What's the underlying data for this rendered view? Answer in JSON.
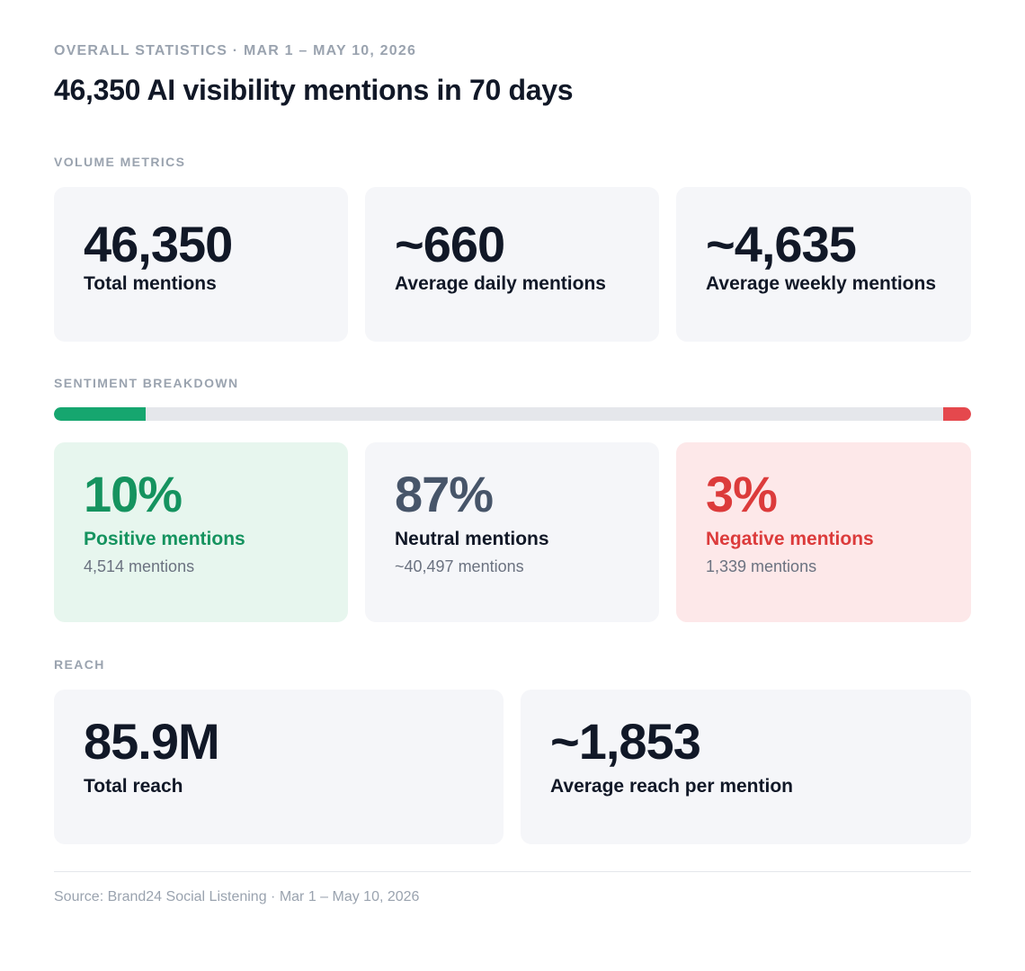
{
  "header": {
    "eyebrow": "OVERALL STATISTICS · MAR 1 – MAY 10, 2026",
    "headline": "46,350 AI visibility mentions in 70 days"
  },
  "volume": {
    "section_label": "VOLUME METRICS",
    "cards": [
      {
        "value": "46,350",
        "label": "Total mentions"
      },
      {
        "value": "~660",
        "label": "Average daily mentions"
      },
      {
        "value": "~4,635",
        "label": "Average weekly mentions"
      }
    ]
  },
  "sentiment": {
    "section_label": "SENTIMENT BREAKDOWN",
    "bar": {
      "positive_pct": 10,
      "neutral_pct": 87,
      "negative_pct": 3,
      "positive_color": "#16a66f",
      "neutral_color": "#e5e7eb",
      "negative_color": "#e5484d"
    },
    "cards": [
      {
        "percent": "10%",
        "label": "Positive mentions",
        "count": "4,514 mentions",
        "accent": "#15935f",
        "bg": "#e7f6ee"
      },
      {
        "percent": "87%",
        "label": "Neutral mentions",
        "count": "~40,497 mentions",
        "accent": "#475569",
        "bg": "#f5f6f9"
      },
      {
        "percent": "3%",
        "label": "Negative mentions",
        "count": "1,339 mentions",
        "accent": "#dc3b3b",
        "bg": "#fde8e9"
      }
    ]
  },
  "reach": {
    "section_label": "REACH",
    "cards": [
      {
        "value": "85.9M",
        "label": "Total reach"
      },
      {
        "value": "~1,853",
        "label": "Average reach per mention"
      }
    ]
  },
  "footer": {
    "source": "Source: Brand24 Social Listening · Mar 1 – May 10, 2026"
  }
}
